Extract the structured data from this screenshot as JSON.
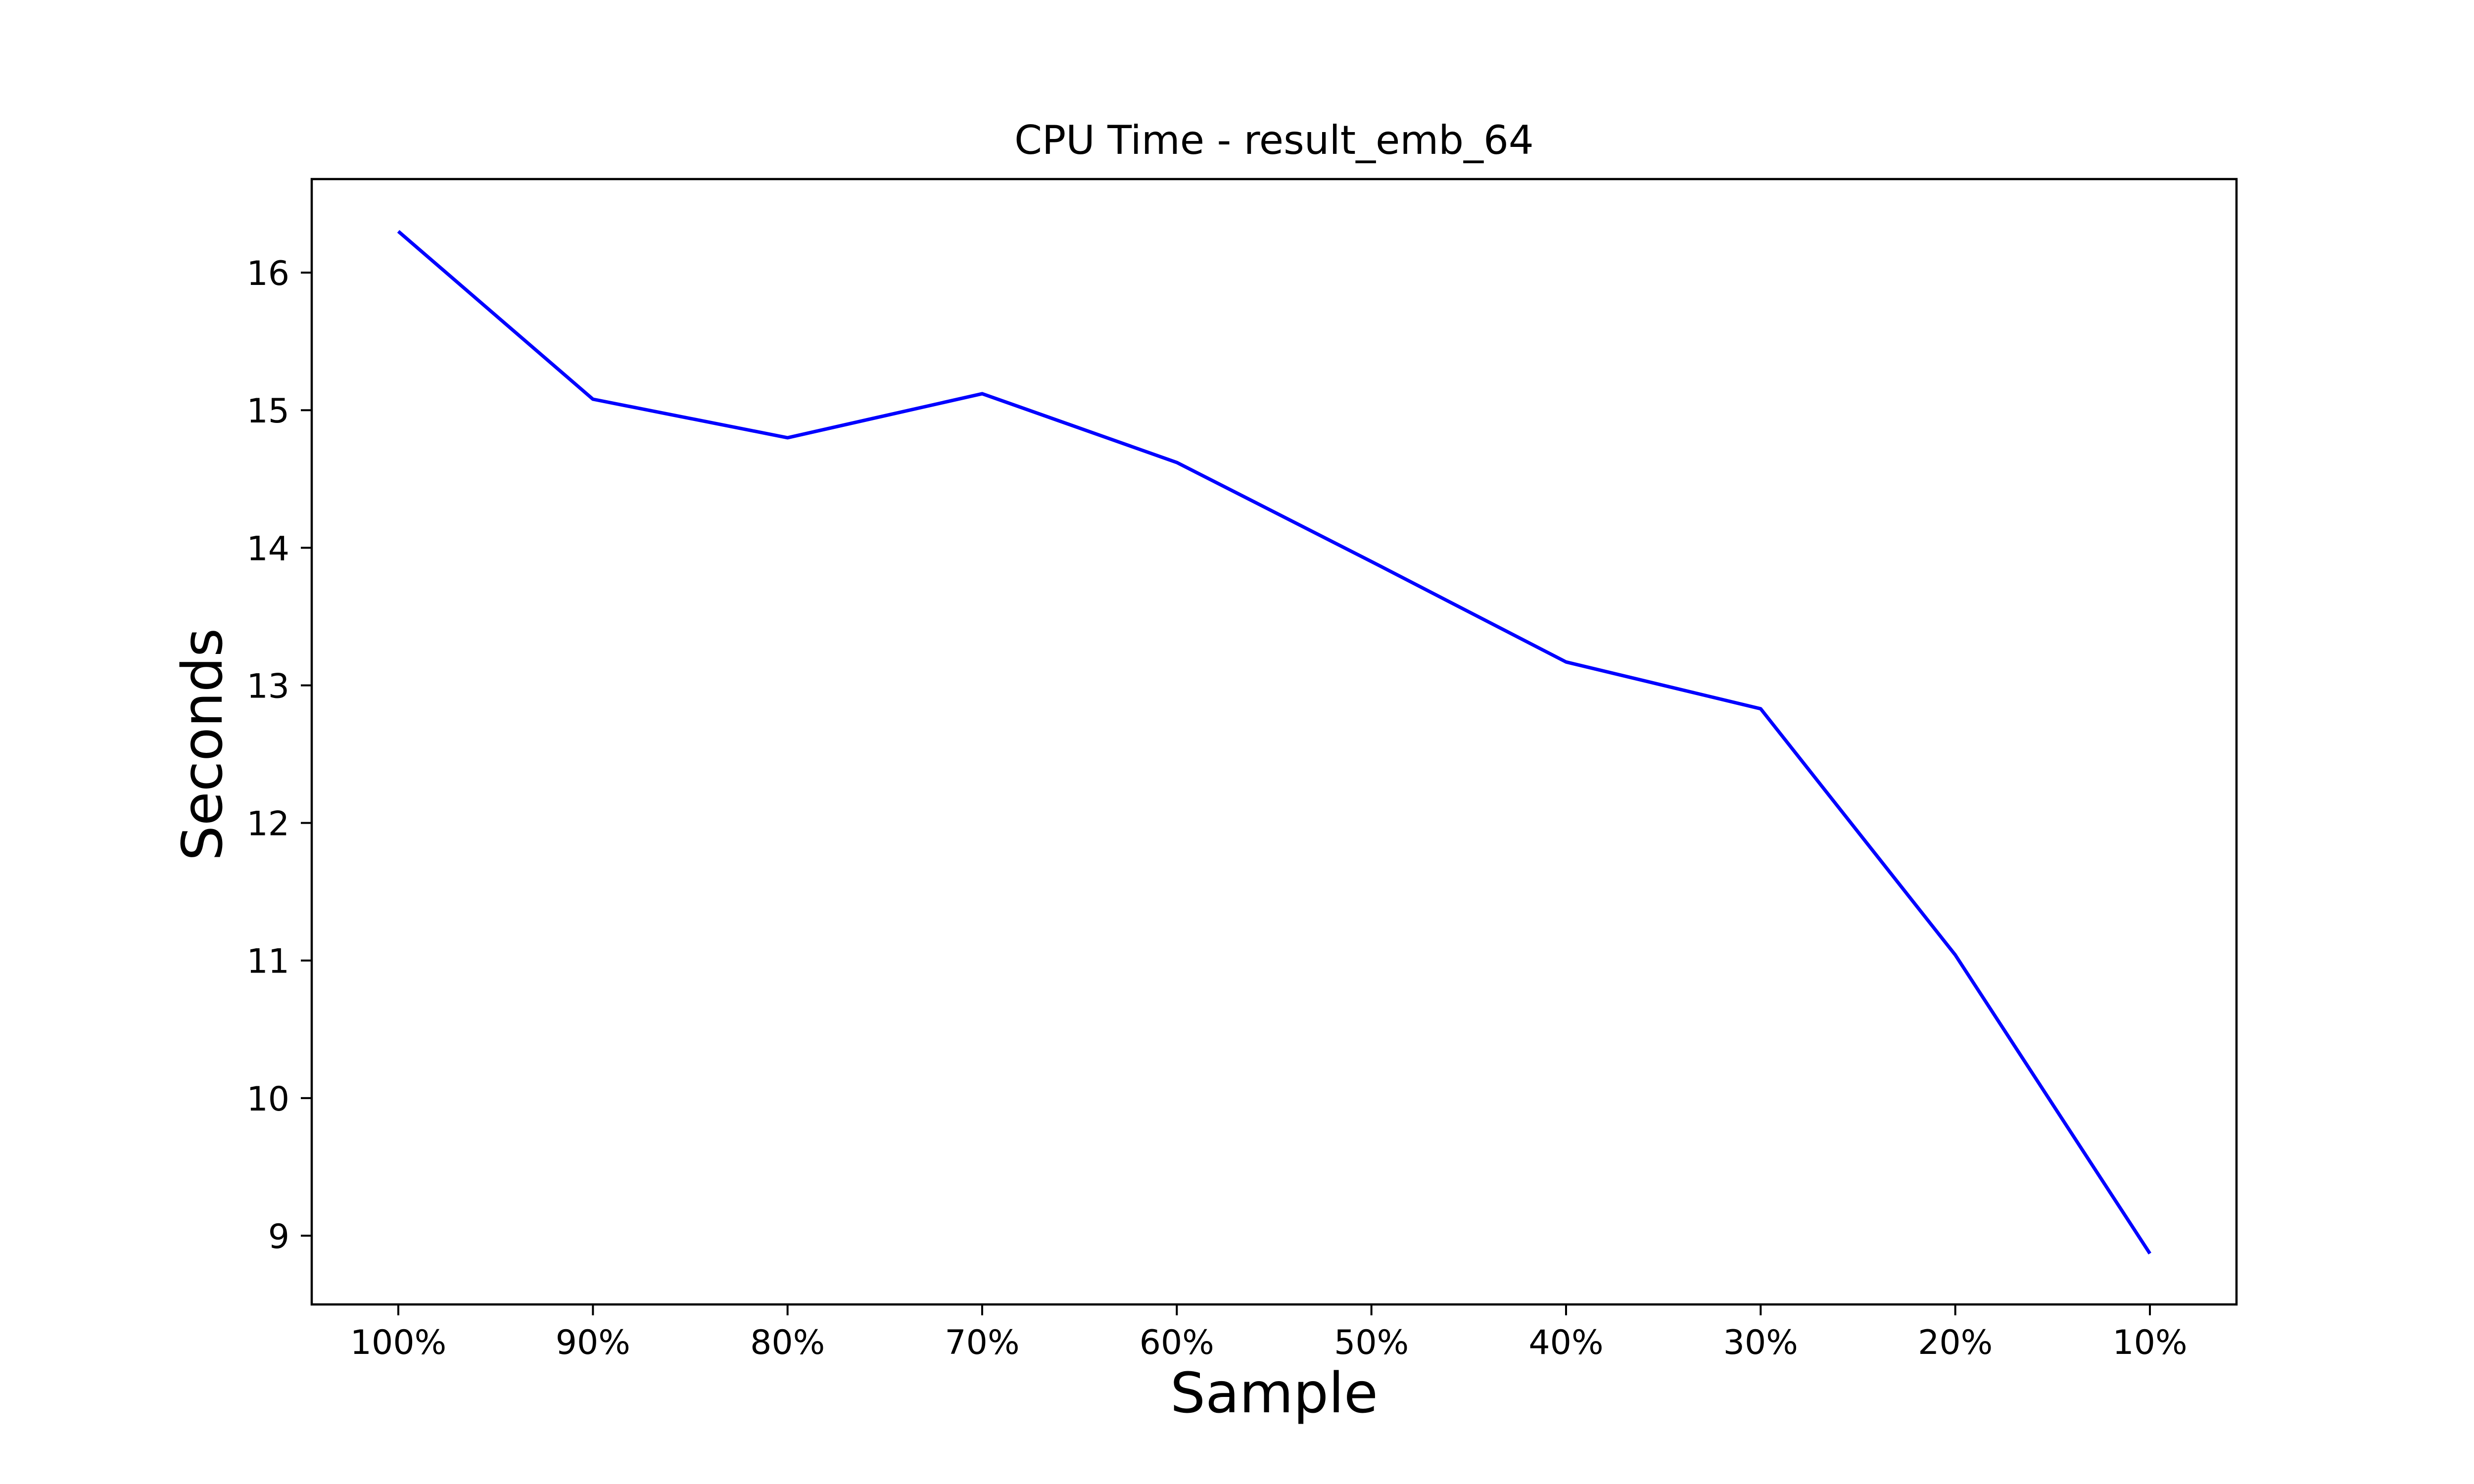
{
  "chart_data": {
    "type": "line",
    "title": "CPU Time - result_emb_64",
    "xlabel": "Sample",
    "ylabel": "Seconds",
    "categories": [
      "100%",
      "90%",
      "80%",
      "70%",
      "60%",
      "50%",
      "40%",
      "30%",
      "20%",
      "10%"
    ],
    "series": [
      {
        "values": [
          16.3,
          15.08,
          14.8,
          15.12,
          14.62,
          13.9,
          13.17,
          12.83,
          11.04,
          8.87
        ],
        "color": "#0000ff"
      }
    ],
    "yticks": [
      9,
      10,
      11,
      12,
      13,
      14,
      15,
      16
    ],
    "ylim": [
      8.5,
      16.68
    ],
    "grid": false,
    "legend": "none"
  }
}
